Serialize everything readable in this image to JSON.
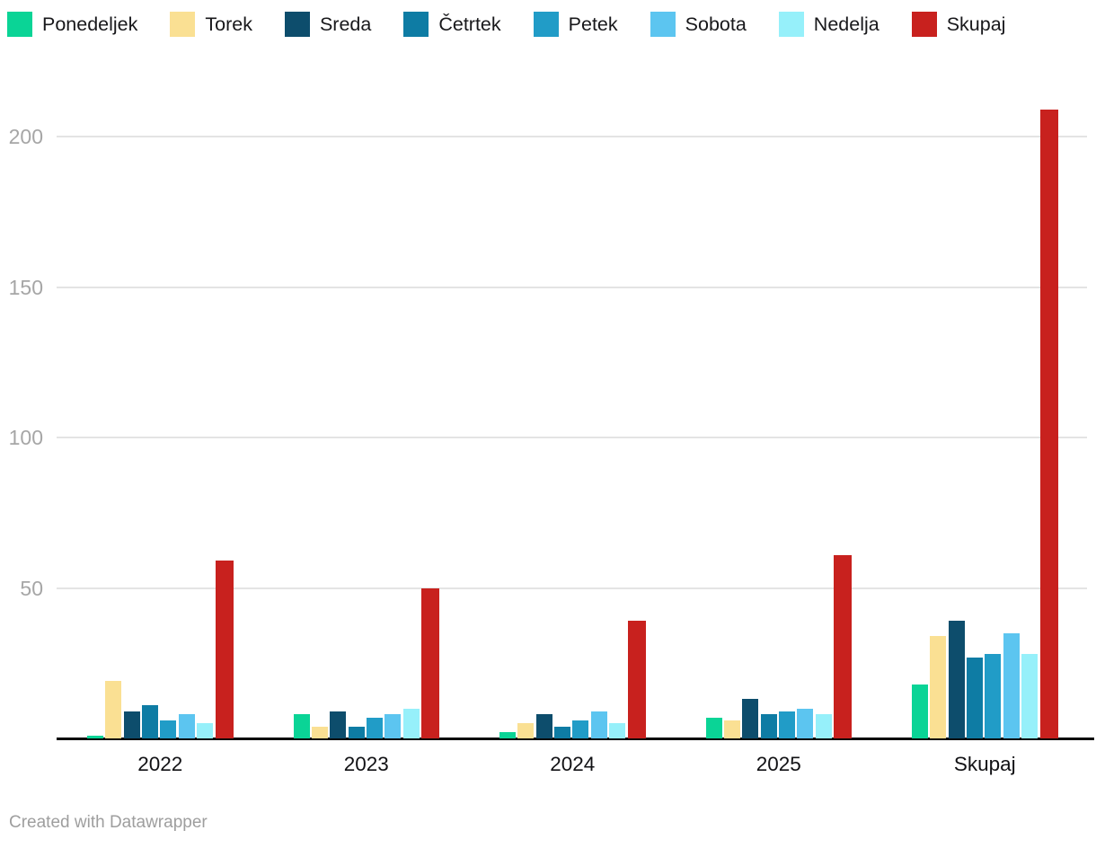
{
  "chart_data": {
    "type": "bar",
    "title": "",
    "categories": [
      "2022",
      "2023",
      "2024",
      "2025",
      "Skupaj"
    ],
    "series": [
      {
        "name": "Ponedeljek",
        "color": "#0ad496",
        "values": [
          1,
          8,
          2,
          7,
          18
        ]
      },
      {
        "name": "Torek",
        "color": "#fae093",
        "values": [
          19,
          4,
          5,
          6,
          34
        ]
      },
      {
        "name": "Sreda",
        "color": "#0d4d6c",
        "values": [
          9,
          9,
          8,
          13,
          39
        ]
      },
      {
        "name": "Četrtek",
        "color": "#0e7ca4",
        "values": [
          11,
          4,
          4,
          8,
          27
        ]
      },
      {
        "name": "Petek",
        "color": "#219cc7",
        "values": [
          6,
          7,
          6,
          9,
          28
        ]
      },
      {
        "name": "Sobota",
        "color": "#5cc5f0",
        "values": [
          8,
          8,
          9,
          10,
          35
        ]
      },
      {
        "name": "Nedelja",
        "color": "#96f0fa",
        "values": [
          5,
          10,
          5,
          8,
          28
        ]
      },
      {
        "name": "Skupaj",
        "color": "#c8211e",
        "values": [
          59,
          50,
          39,
          61,
          209
        ]
      }
    ],
    "xlabel": "",
    "ylabel": "",
    "y_ticks": [
      50,
      100,
      150,
      200
    ],
    "ylim": [
      0,
      215
    ],
    "grid": true,
    "legend_position": "top",
    "axis_color": "#060606",
    "grid_color": "#e4e4e4",
    "y_label_color": "#a6a6a6",
    "x_label_color": "#111114"
  },
  "legend": {
    "items": [
      "Ponedeljek",
      "Torek",
      "Sreda",
      "Četrtek",
      "Petek",
      "Sobota",
      "Nedelja",
      "Skupaj"
    ]
  },
  "footer": {
    "credit": "Created with Datawrapper"
  }
}
